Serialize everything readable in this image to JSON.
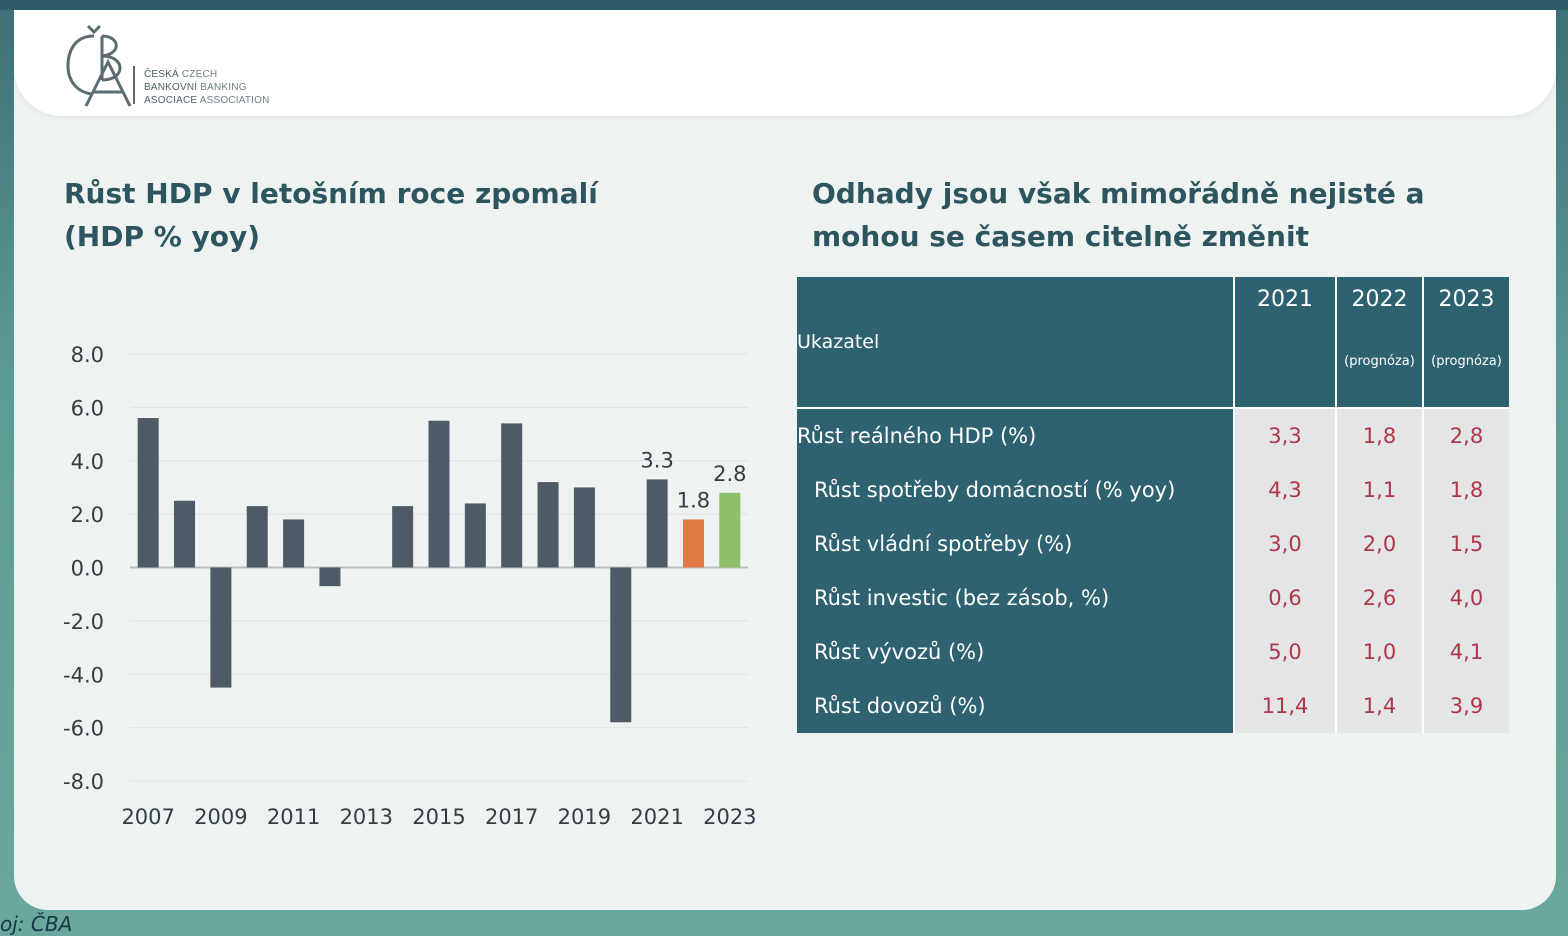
{
  "logo": {
    "monogram": "ČBA",
    "lines": [
      {
        "cz": "ČESKÁ",
        "en": "CZECH"
      },
      {
        "cz": "BANKOVNÍ",
        "en": "BANKING"
      },
      {
        "cz": "ASOCIACE",
        "en": "ASSOCIATION"
      }
    ]
  },
  "left_title": {
    "line1": "Růst HDP v letošním roce zpomalí",
    "line2": "(HDP % yoy)"
  },
  "right_title": {
    "line1": "Odhady jsou však mimořádně nejisté a",
    "line2": "mohou se časem citelně změnit"
  },
  "chart_data": {
    "type": "bar",
    "title": "Růst HDP v letošním roce zpomalí (HDP % yoy)",
    "categories": [
      "2007",
      "2008",
      "2009",
      "2010",
      "2011",
      "2012",
      "2013",
      "2014",
      "2015",
      "2016",
      "2017",
      "2018",
      "2019",
      "2020",
      "2021",
      "2022",
      "2023"
    ],
    "values": [
      5.6,
      2.5,
      -4.5,
      2.3,
      1.8,
      -0.7,
      0.0,
      2.3,
      5.5,
      2.4,
      5.4,
      3.2,
      3.0,
      -5.8,
      3.3,
      1.8,
      2.8
    ],
    "x_tick_labels": [
      "2007",
      "2009",
      "2011",
      "2013",
      "2015",
      "2017",
      "2019",
      "2021",
      "2023"
    ],
    "y_tick_labels": [
      "8.0",
      "6.0",
      "4.0",
      "2.0",
      "0.0",
      "-2.0",
      "-4.0",
      "-6.0",
      "-8.0"
    ],
    "data_labels": [
      {
        "category": "2021",
        "text": "3.3"
      },
      {
        "category": "2022",
        "text": "1.8"
      },
      {
        "category": "2023",
        "text": "2.8"
      }
    ],
    "ylim": [
      -8,
      8
    ],
    "grid": true,
    "legend": "none",
    "colors": {
      "default": "#4e5b67",
      "2022": "#e07b46",
      "2023": "#8fc067"
    }
  },
  "table": {
    "header": {
      "label": "Ukazatel",
      "years": [
        "2021",
        "2022",
        "2023"
      ],
      "notes": [
        "",
        "(prognóza)",
        "(prognóza)"
      ]
    },
    "rows": [
      {
        "label": "Růst reálného HDP (%)",
        "values": [
          "3,3",
          "1,8",
          "2,8"
        ]
      },
      {
        "label": "Růst spotřeby domácností (% yoy)",
        "values": [
          "4,3",
          "1,1",
          "1,8"
        ]
      },
      {
        "label": "Růst vládní spotřeby (%)",
        "values": [
          "3,0",
          "2,0",
          "1,5"
        ]
      },
      {
        "label": "Růst investic (bez zásob, %)",
        "values": [
          "0,6",
          "2,6",
          "4,0"
        ]
      },
      {
        "label": "Růst vývozů (%)",
        "values": [
          "5,0",
          "1,0",
          "4,1"
        ]
      },
      {
        "label": "Růst dovozů (%)",
        "values": [
          "11,4",
          "1,4",
          "3,9"
        ]
      }
    ],
    "colors": {
      "header_bg": "#2e6270",
      "value_bg": "#e3e5e6",
      "value_text": "#b0364a"
    }
  },
  "footer": {
    "source": "oj: ČBA"
  }
}
